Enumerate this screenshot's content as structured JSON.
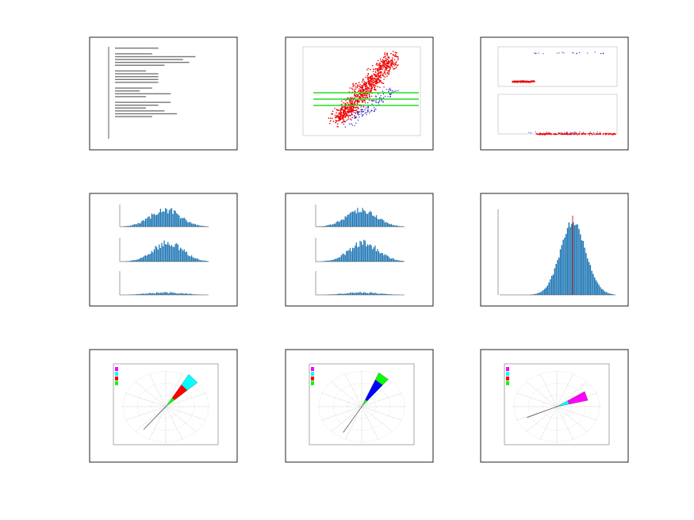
{
  "panels": [
    {
      "type": "text-report"
    },
    {
      "type": "scatter"
    },
    {
      "type": "scatter-pair"
    },
    {
      "type": "histogram-stack"
    },
    {
      "type": "histogram-stack"
    },
    {
      "type": "histogram"
    },
    {
      "type": "wind-rose"
    },
    {
      "type": "wind-rose"
    },
    {
      "type": "wind-rose"
    }
  ]
}
